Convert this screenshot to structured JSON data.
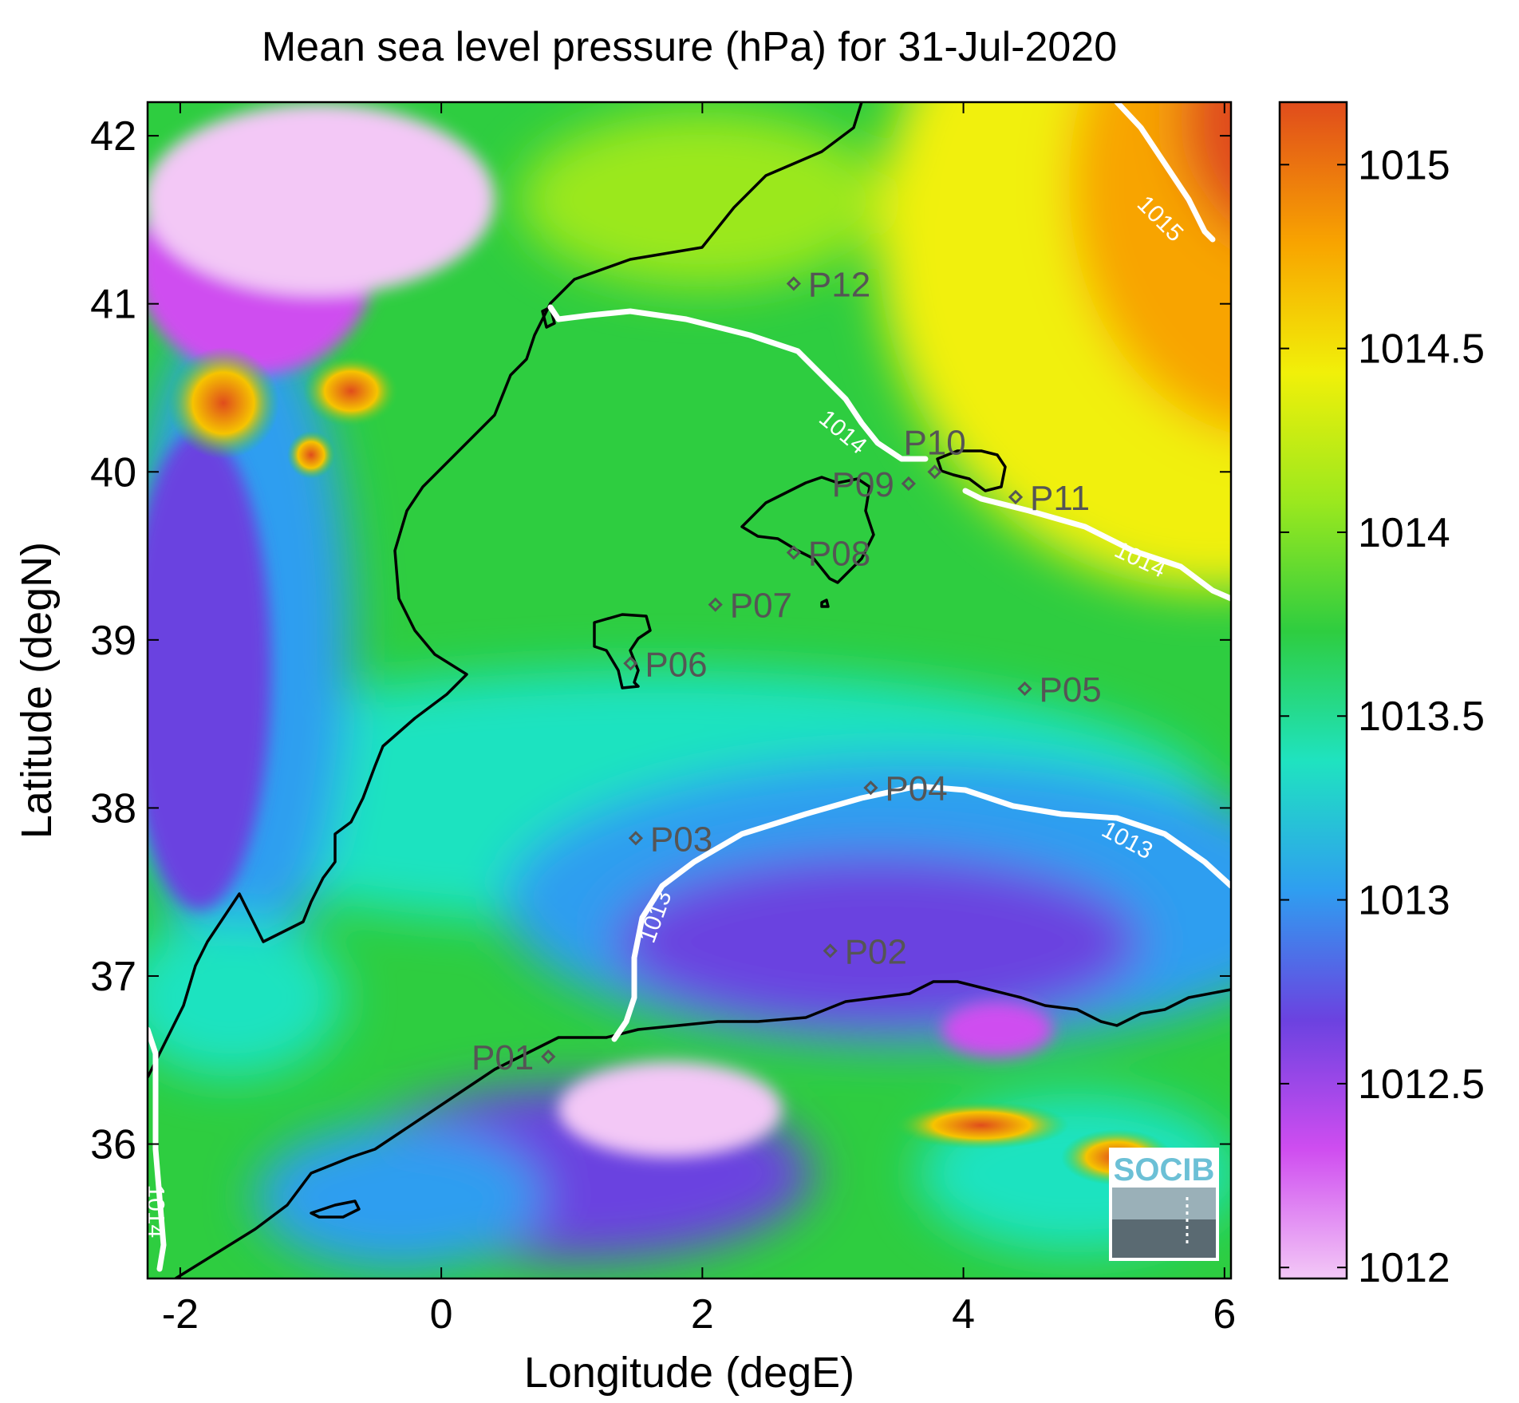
{
  "title": "Mean sea level pressure (hPa) for 31-Jul-2020",
  "axes": {
    "xlabel": "Longitude (degE)",
    "ylabel": "Latitude (degN)",
    "xlim": [
      -2.25,
      6.05
    ],
    "ylim": [
      35.2,
      42.2
    ],
    "xticks": [
      {
        "value": -2,
        "label": "-2"
      },
      {
        "value": 0,
        "label": "0"
      },
      {
        "value": 2,
        "label": "2"
      },
      {
        "value": 4,
        "label": "4"
      },
      {
        "value": 6,
        "label": "6"
      }
    ],
    "yticks": [
      {
        "value": 36,
        "label": "36"
      },
      {
        "value": 37,
        "label": "37"
      },
      {
        "value": 38,
        "label": "38"
      },
      {
        "value": 39,
        "label": "39"
      },
      {
        "value": 40,
        "label": "40"
      },
      {
        "value": 41,
        "label": "41"
      },
      {
        "value": 42,
        "label": "42"
      }
    ]
  },
  "colorbar": {
    "range": [
      1011.97,
      1015.17
    ],
    "ticks": [
      {
        "value": 1012,
        "label": "1012"
      },
      {
        "value": 1012.5,
        "label": "1012.5"
      },
      {
        "value": 1013,
        "label": "1013"
      },
      {
        "value": 1013.5,
        "label": "1013.5"
      },
      {
        "value": 1014,
        "label": "1014"
      },
      {
        "value": 1014.5,
        "label": "1014.5"
      },
      {
        "value": 1015,
        "label": "1015"
      }
    ],
    "colors": [
      "#f3c8f6",
      "#cf4df0",
      "#6b42e0",
      "#2f9ef0",
      "#1fe3c0",
      "#2ecd40",
      "#9be81e",
      "#f1f009",
      "#f8a400",
      "#e04c1c"
    ]
  },
  "points": [
    {
      "label": "P01",
      "lon": 0.82,
      "lat": 36.52,
      "side": "left"
    },
    {
      "label": "P02",
      "lon": 2.98,
      "lat": 37.15,
      "side": "right"
    },
    {
      "label": "P03",
      "lon": 1.49,
      "lat": 37.82,
      "side": "right"
    },
    {
      "label": "P04",
      "lon": 3.29,
      "lat": 38.12,
      "side": "right"
    },
    {
      "label": "P05",
      "lon": 4.47,
      "lat": 38.71,
      "side": "right"
    },
    {
      "label": "P06",
      "lon": 1.45,
      "lat": 38.86,
      "side": "right"
    },
    {
      "label": "P07",
      "lon": 2.1,
      "lat": 39.21,
      "side": "right"
    },
    {
      "label": "P08",
      "lon": 2.7,
      "lat": 39.52,
      "side": "right"
    },
    {
      "label": "P09",
      "lon": 3.58,
      "lat": 39.93,
      "side": "left"
    },
    {
      "label": "P10",
      "lon": 3.78,
      "lat": 40.0,
      "side": "above"
    },
    {
      "label": "P11",
      "lon": 4.4,
      "lat": 39.85,
      "side": "right"
    },
    {
      "label": "P12",
      "lon": 2.7,
      "lat": 41.12,
      "side": "right"
    }
  ],
  "contours": [
    {
      "label": "1013",
      "label_lon": 1.65,
      "label_lat": 37.35,
      "angle": -70
    },
    {
      "label": "1013",
      "label_lon": 5.25,
      "label_lat": 37.8,
      "angle": 28
    },
    {
      "label": "1014",
      "label_lon": 3.07,
      "label_lat": 40.23,
      "angle": 40
    },
    {
      "label": "1014",
      "label_lon": 5.35,
      "label_lat": 39.47,
      "angle": 25
    },
    {
      "label": "1014",
      "label_lon": -2.2,
      "label_lat": 35.6,
      "angle": 90
    },
    {
      "label": "1015",
      "label_lon": 5.5,
      "label_lat": 41.5,
      "angle": 45
    }
  ],
  "logo": {
    "text": "SOCIB"
  }
}
